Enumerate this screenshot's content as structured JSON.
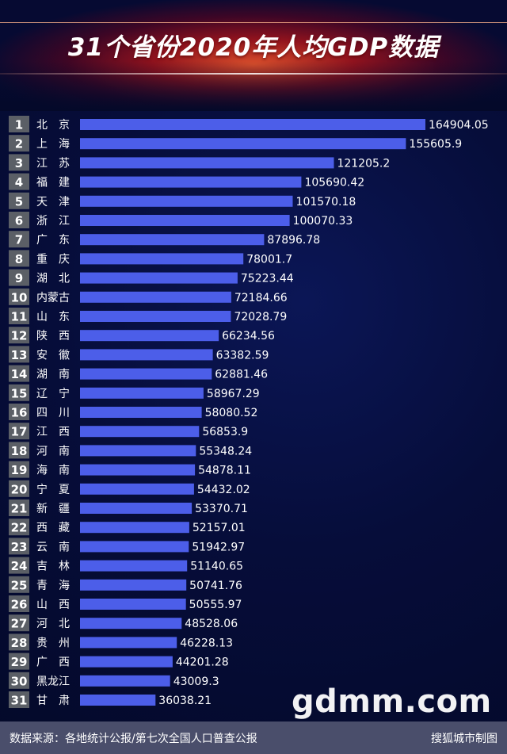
{
  "header": {
    "title": "31个省份2020年人均GDP数据"
  },
  "chart_data": {
    "type": "bar",
    "orientation": "horizontal",
    "title": "31个省份2020年人均GDP数据",
    "categories": [
      "北京",
      "上海",
      "江苏",
      "福建",
      "天津",
      "浙江",
      "广东",
      "重庆",
      "湖北",
      "内蒙古",
      "山东",
      "陕西",
      "安徽",
      "湖南",
      "辽宁",
      "四川",
      "江西",
      "河南",
      "海南",
      "宁夏",
      "新疆",
      "西藏",
      "云南",
      "吉林",
      "青海",
      "山西",
      "河北",
      "贵州",
      "广西",
      "黑龙江",
      "甘肃"
    ],
    "ranks": [
      "1",
      "2",
      "3",
      "4",
      "5",
      "6",
      "7",
      "8",
      "9",
      "10",
      "11",
      "12",
      "13",
      "14",
      "15",
      "16",
      "17",
      "18",
      "19",
      "20",
      "21",
      "22",
      "23",
      "24",
      "25",
      "26",
      "27",
      "28",
      "29",
      "30",
      "31"
    ],
    "value_labels": [
      "164904.05",
      "155605.9",
      "121205.2",
      "105690.42",
      "101570.18",
      "100070.33",
      "87896.78",
      "78001.7",
      "75223.44",
      "72184.66",
      "72028.79",
      "66234.56",
      "63382.59",
      "62881.46",
      "58967.29",
      "58080.52",
      "56853.9",
      "55348.24",
      "54878.11",
      "54432.02",
      "53370.71",
      "52157.01",
      "51942.97",
      "51140.65",
      "50741.76",
      "50555.97",
      "48528.06",
      "46228.13",
      "44201.28",
      "43009.3",
      "36038.21"
    ],
    "values": [
      164904.05,
      155605.9,
      121205.2,
      105690.42,
      101570.18,
      100070.33,
      87896.78,
      78001.7,
      75223.44,
      72184.66,
      72028.79,
      66234.56,
      63382.59,
      62881.46,
      58967.29,
      58080.52,
      56853.9,
      55348.24,
      54878.11,
      54432.02,
      53370.71,
      52157.01,
      51942.97,
      51140.65,
      50741.76,
      50555.97,
      48528.06,
      46228.13,
      44201.28,
      43009.3,
      36038.21
    ],
    "bar_color": "#4c5ee9",
    "rank_badge_color": "#5b5f66"
  },
  "watermark": "gdmm.com",
  "footer": {
    "source_text": "数据来源：各地统计公报/第七次全国人口普查公报",
    "credit_text": "搜狐城市制图"
  }
}
